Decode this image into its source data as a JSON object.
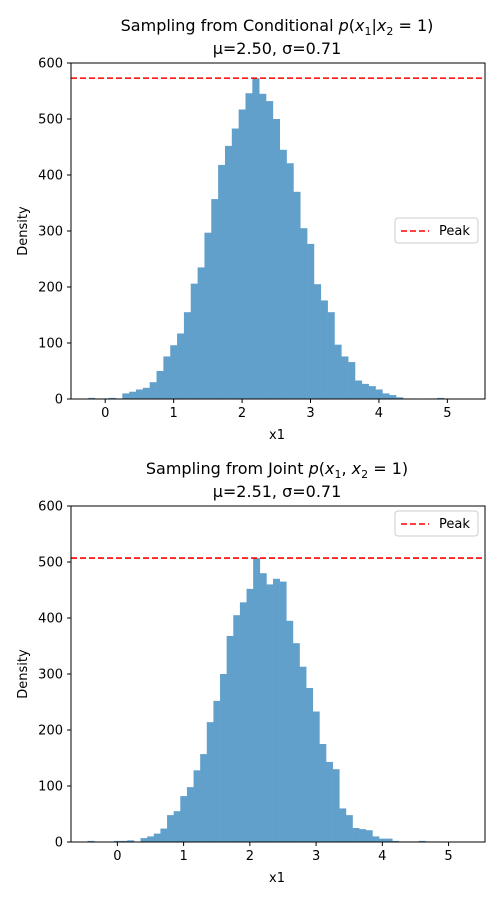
{
  "chart_data": [
    {
      "type": "bar",
      "title_prefix": "Sampling from Conditional ",
      "title_math": "p(x1|x2 = 1)",
      "subtitle": "μ=2.50, σ=0.71",
      "xlabel": "x1",
      "ylabel": "Density",
      "xlim": [
        -0.5,
        5.55
      ],
      "ylim": [
        0,
        600
      ],
      "xticks": [
        0,
        1,
        2,
        3,
        4,
        5
      ],
      "yticks": [
        0,
        100,
        200,
        300,
        400,
        500,
        600
      ],
      "bar_color": "#62a0cc",
      "bin_start": -0.25,
      "bin_width": 0.1,
      "values": [
        2,
        0,
        1,
        2,
        1,
        10,
        13,
        17,
        20,
        30,
        50,
        76,
        96,
        117,
        155,
        206,
        235,
        297,
        357,
        418,
        452,
        483,
        517,
        546,
        573,
        545,
        532,
        500,
        445,
        421,
        370,
        305,
        277,
        205,
        176,
        155,
        97,
        76,
        66,
        33,
        27,
        23,
        17,
        10,
        7,
        3,
        1,
        0,
        0,
        0,
        1,
        2
      ],
      "peak_line": {
        "value": 573,
        "label": "Peak",
        "color": "#ff0000"
      },
      "legend": {
        "loc": "center-right",
        "entries": [
          "Peak"
        ]
      }
    },
    {
      "type": "bar",
      "title_prefix": "Sampling from Joint ",
      "title_math": "p(x1, x2 = 1)",
      "subtitle": "μ=2.51, σ=0.71",
      "xlabel": "x1",
      "ylabel": "Density",
      "xlim": [
        -0.7,
        5.55
      ],
      "ylim": [
        0,
        600
      ],
      "xticks": [
        0,
        1,
        2,
        3,
        4,
        5
      ],
      "yticks": [
        0,
        100,
        200,
        300,
        400,
        500,
        600
      ],
      "bar_color": "#62a0cc",
      "bin_start": -0.45,
      "bin_width": 0.1,
      "values": [
        2,
        0,
        0,
        0,
        2,
        2,
        3,
        0,
        7,
        10,
        15,
        24,
        48,
        55,
        82,
        98,
        128,
        157,
        214,
        252,
        300,
        368,
        405,
        428,
        452,
        507,
        480,
        460,
        470,
        465,
        395,
        355,
        313,
        275,
        233,
        175,
        143,
        130,
        60,
        48,
        25,
        23,
        21,
        10,
        6,
        6,
        2,
        1,
        1,
        1,
        2,
        1,
        1
      ],
      "peak_line": {
        "value": 507,
        "label": "Peak",
        "color": "#ff0000"
      },
      "legend": {
        "loc": "upper-right",
        "entries": [
          "Peak"
        ]
      }
    }
  ]
}
